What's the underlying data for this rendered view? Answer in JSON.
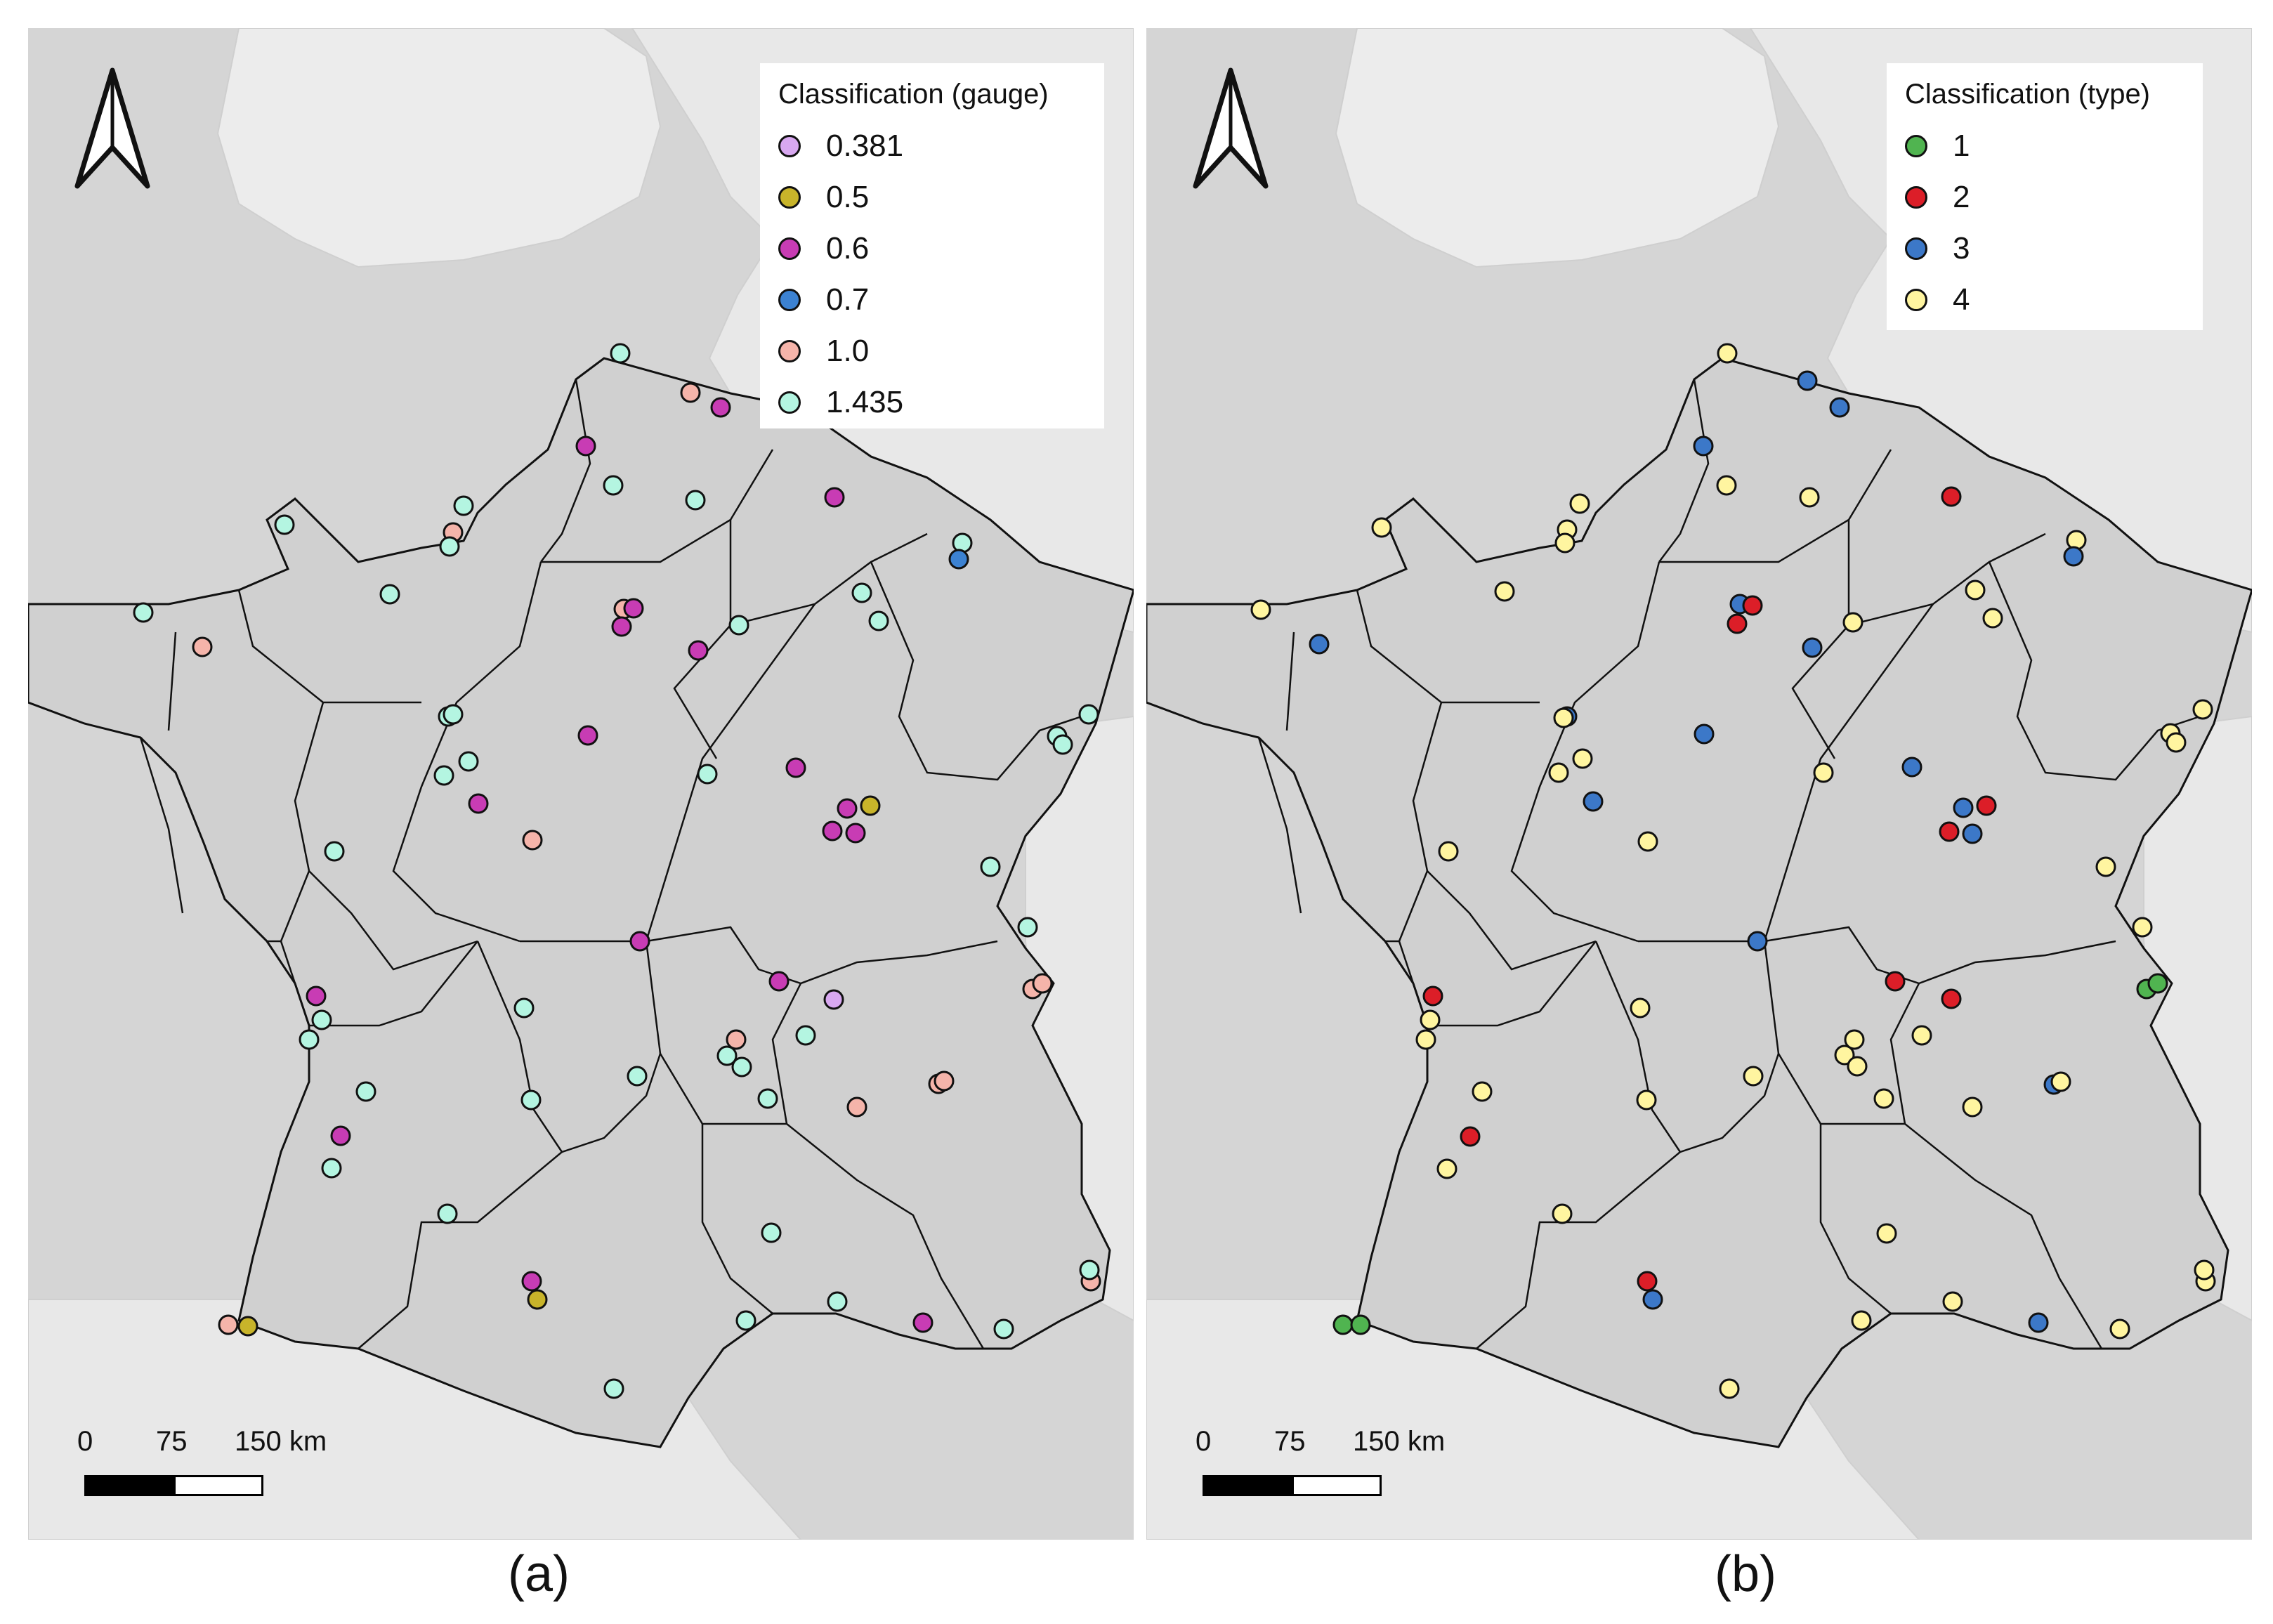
{
  "panels": [
    {
      "id": "a",
      "caption": "(a)",
      "legend": {
        "title": "Classification (gauge)",
        "items": [
          {
            "label": "0.381",
            "color": "#d8a8f0"
          },
          {
            "label": "0.5",
            "color": "#c8b42a"
          },
          {
            "label": "0.6",
            "color": "#c83cb4"
          },
          {
            "label": "0.7",
            "color": "#3c82d2"
          },
          {
            "label": "1.0",
            "color": "#f5b4aa"
          },
          {
            "label": "1.435",
            "color": "#b4f5e1"
          }
        ]
      },
      "scale": {
        "labels": [
          "0",
          "75",
          "150 km"
        ]
      },
      "north_arrow": "north-arrow-icon"
    },
    {
      "id": "b",
      "caption": "(b)",
      "legend": {
        "title": "Classification (type)",
        "items": [
          {
            "label": "1",
            "color": "#50b450"
          },
          {
            "label": "2",
            "color": "#dc1e28"
          },
          {
            "label": "3",
            "color": "#3c78c8"
          },
          {
            "label": "4",
            "color": "#fff5a0"
          }
        ]
      },
      "scale": {
        "labels": [
          "0",
          "75",
          "150 km"
        ]
      },
      "north_arrow": "north-arrow-icon"
    }
  ]
}
